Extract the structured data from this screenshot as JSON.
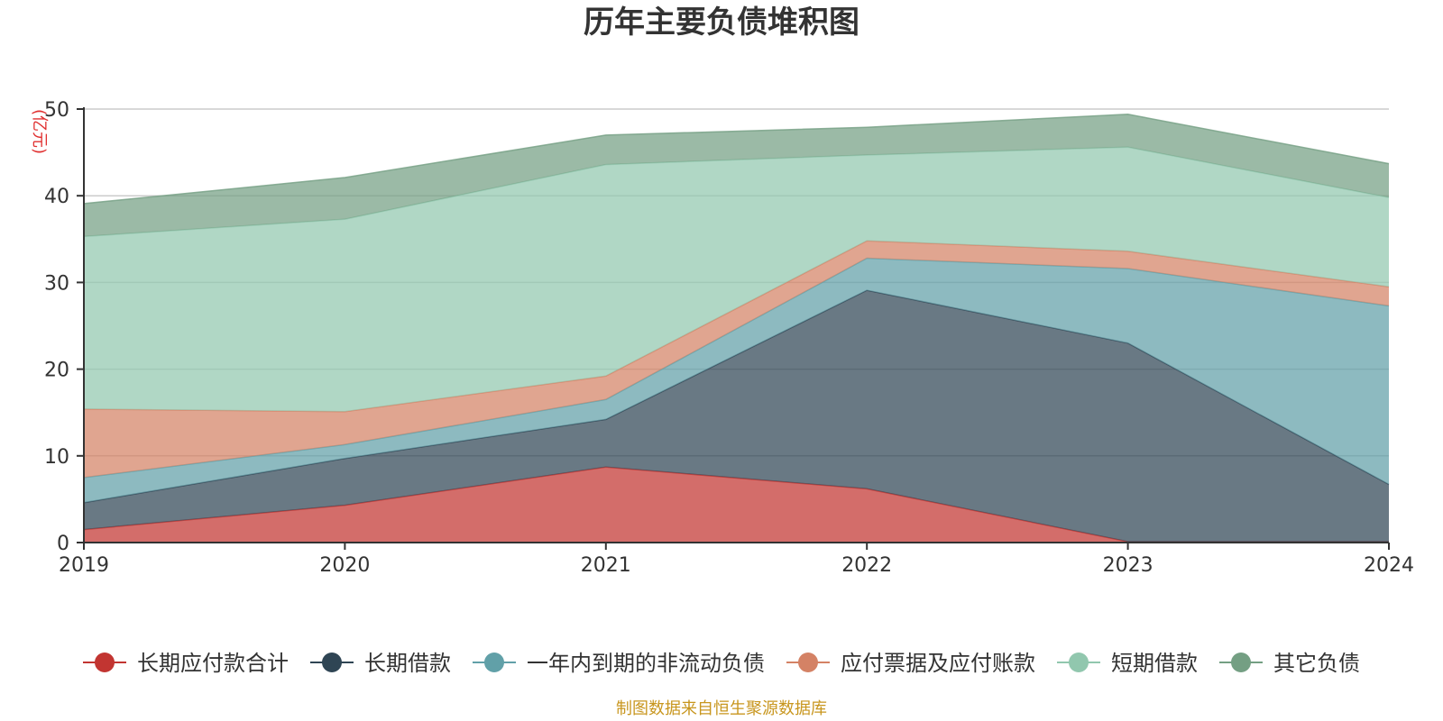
{
  "chart_data": {
    "type": "area",
    "stacked": true,
    "title": "历年主要负债堆积图",
    "ylabel": "(亿元)",
    "xlabel": "",
    "ylim": [
      0,
      50
    ],
    "yticks": [
      0,
      10,
      20,
      30,
      40,
      50
    ],
    "categories": [
      "2019",
      "2020",
      "2021",
      "2022",
      "2023",
      "2024"
    ],
    "series": [
      {
        "name": "长期应付款合计",
        "color": "#c23531",
        "values": [
          1.5,
          4.3,
          8.7,
          6.2,
          0.1,
          0.1
        ]
      },
      {
        "name": "长期借款",
        "color": "#2f4554",
        "values": [
          3.1,
          5.4,
          5.5,
          22.9,
          22.9,
          6.6
        ]
      },
      {
        "name": "一年内到期的非流动负债",
        "color": "#61a0a8",
        "values": [
          2.9,
          1.6,
          2.3,
          3.7,
          8.6,
          20.6
        ]
      },
      {
        "name": "应付票据及应付账款",
        "color": "#d48265",
        "values": [
          7.9,
          3.8,
          2.7,
          2.0,
          2.0,
          2.2
        ]
      },
      {
        "name": "短期借款",
        "color": "#91c7ae",
        "values": [
          19.9,
          22.2,
          24.4,
          9.9,
          12.0,
          10.3
        ]
      },
      {
        "name": "其它负债",
        "color": "#749f83",
        "values": [
          3.8,
          4.8,
          3.4,
          3.2,
          3.8,
          3.9
        ]
      }
    ],
    "legend_position": "bottom"
  },
  "source_note": "制图数据来自恒生聚源数据库"
}
